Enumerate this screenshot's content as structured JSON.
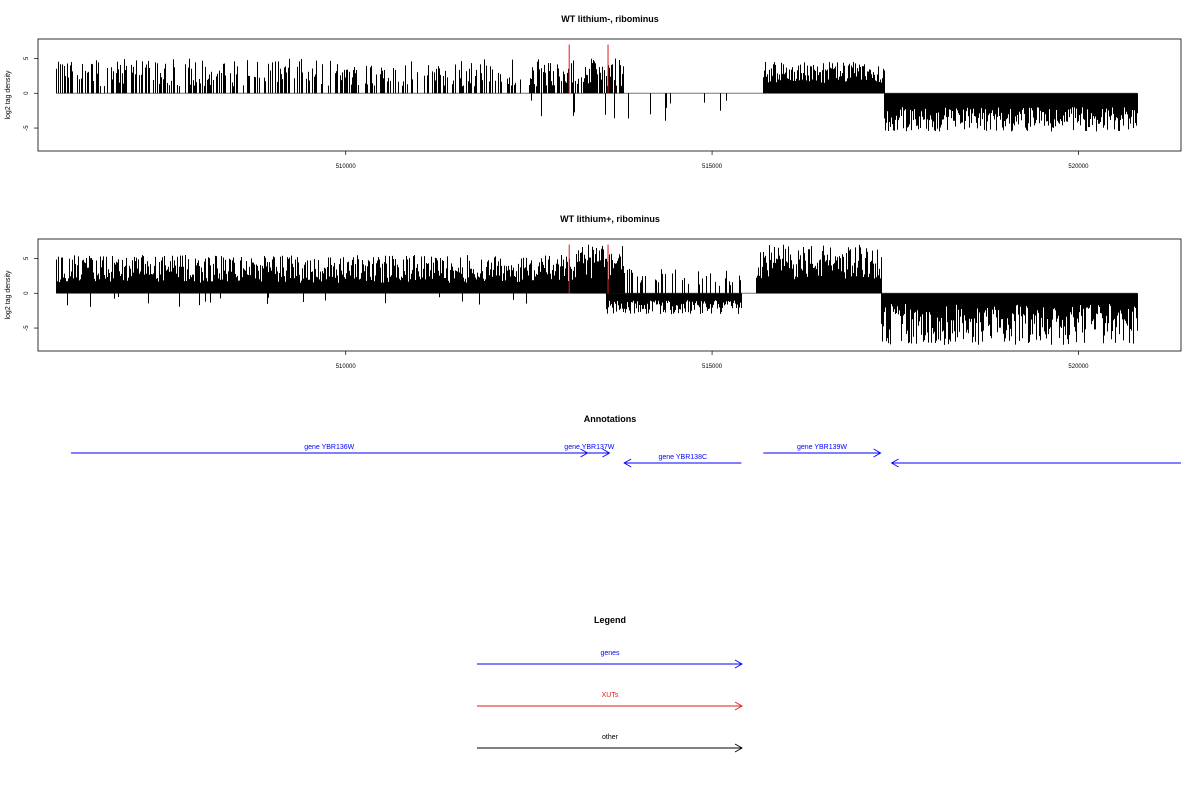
{
  "chart_data": [
    {
      "type": "bar",
      "title": "WT lithium-, ribominus",
      "ylabel": "log2 tag density",
      "xlim": [
        505800,
        521400
      ],
      "ylim": [
        -8.3,
        7.8
      ],
      "yticks": [
        -5,
        0,
        5
      ],
      "xticks": [
        510000,
        515000,
        520000
      ],
      "xtick_labels": [
        "510000",
        "515000",
        "520000"
      ],
      "grid": false,
      "highlight_color": "#e31a1c",
      "bar_color": "#000000",
      "regions": [
        {
          "start": 506050,
          "end": 512400,
          "strand": "+",
          "density": 0.5,
          "min": 1.0,
          "max": 5.0
        },
        {
          "start": 512500,
          "end": 513800,
          "strand": "+",
          "density": 0.8,
          "min": 1.0,
          "max": 5.0
        },
        {
          "start": 512300,
          "end": 515400,
          "strand": "-",
          "density": 0.08,
          "min": 1.0,
          "max": 4.0
        },
        {
          "start": 515700,
          "end": 517350,
          "strand": "+",
          "density": 1.0,
          "min": 1.5,
          "max": 4.5
        },
        {
          "start": 517350,
          "end": 520800,
          "strand": "-",
          "density": 1.0,
          "min": 2.0,
          "max": 5.5
        }
      ],
      "highlights": [
        {
          "x": 513050,
          "y": 7.0
        },
        {
          "x": 513580,
          "y": 7.0
        }
      ]
    },
    {
      "type": "bar",
      "title": "WT lithium+, ribominus",
      "ylabel": "log2 tag density",
      "xlim": [
        505800,
        521400
      ],
      "ylim": [
        -8.3,
        7.8
      ],
      "yticks": [
        -5,
        0,
        5
      ],
      "xticks": [
        510000,
        515000,
        520000
      ],
      "xtick_labels": [
        "510000",
        "515000",
        "520000"
      ],
      "grid": false,
      "highlight_color": "#e31a1c",
      "bar_color": "#000000",
      "regions": [
        {
          "start": 506050,
          "end": 513550,
          "strand": "+",
          "density": 1.3,
          "min": 1.5,
          "max": 5.5
        },
        {
          "start": 513100,
          "end": 513800,
          "strand": "+",
          "density": 3.0,
          "min": 2.0,
          "max": 7.0
        },
        {
          "start": 513550,
          "end": 515400,
          "strand": "+",
          "density": 0.3,
          "min": 1.0,
          "max": 3.5
        },
        {
          "start": 513550,
          "end": 515400,
          "strand": "-",
          "density": 1.0,
          "min": 1.0,
          "max": 3.0
        },
        {
          "start": 515600,
          "end": 517300,
          "strand": "+",
          "density": 4.0,
          "min": 2.0,
          "max": 7.0
        },
        {
          "start": 517300,
          "end": 520800,
          "strand": "-",
          "density": 4.0,
          "min": 1.5,
          "max": 7.5
        },
        {
          "start": 506050,
          "end": 512500,
          "strand": "-",
          "density": 0.04,
          "min": 0.5,
          "max": 2.0
        }
      ],
      "highlights": [
        {
          "x": 513050,
          "y": 7.0
        },
        {
          "x": 513580,
          "y": 7.0
        }
      ]
    }
  ],
  "annotations": {
    "title": "Annotations",
    "xlim": [
      505800,
      521400
    ],
    "gene_color": "#0000ff",
    "genes": [
      {
        "label": "gene YBR136W",
        "start": 506250,
        "end": 513300,
        "strand": "+",
        "row": 0
      },
      {
        "label": "gene YBR137W",
        "start": 513050,
        "end": 513600,
        "strand": "+",
        "row": 0
      },
      {
        "label": "gene YBR138C",
        "start": 513800,
        "end": 515400,
        "strand": "-",
        "row": 1
      },
      {
        "label": "gene YBR139W",
        "start": 515700,
        "end": 517300,
        "strand": "+",
        "row": 0
      },
      {
        "label": "",
        "start": 517450,
        "end": 521400,
        "strand": "-",
        "row": 1
      }
    ]
  },
  "legend": {
    "title": "Legend",
    "items": [
      {
        "label": "genes",
        "color": "#0000ff"
      },
      {
        "label": "XUTs",
        "color": "#e31a1c"
      },
      {
        "label": "other",
        "color": "#000000"
      }
    ]
  }
}
